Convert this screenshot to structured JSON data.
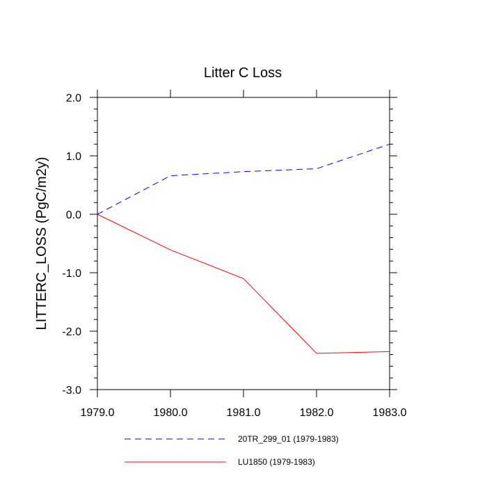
{
  "chart_data": {
    "type": "line",
    "title": "Litter C Loss",
    "xlabel": "",
    "ylabel": "LITTERC_LOSS  (PgC/m2y)",
    "xlim": [
      1979.0,
      1983.0
    ],
    "ylim": [
      -3.0,
      2.0
    ],
    "x": [
      1979,
      1980,
      1981,
      1982,
      1983
    ],
    "xticks": [
      1979,
      1980,
      1981,
      1982,
      1983
    ],
    "xtick_labels": [
      "1979.0",
      "1980.0",
      "1981.0",
      "1982.0",
      "1983.0"
    ],
    "yticks": [
      -3,
      -2,
      -1,
      0,
      1,
      2
    ],
    "ytick_labels": [
      "-3.0",
      "-2.0",
      "-1.0",
      "0.0",
      "1.0",
      "2.0"
    ],
    "grid": false,
    "legend_position": "bottom",
    "series": [
      {
        "name": "20TR_299_01 (1979-1983)",
        "values": [
          0.0,
          0.66,
          0.73,
          0.78,
          1.2
        ],
        "color": "#0000ff",
        "dash": "dashed"
      },
      {
        "name": "LU1850 (1979-1983)",
        "values": [
          0.0,
          -0.61,
          -1.1,
          -2.38,
          -2.35
        ],
        "color": "#ff0000",
        "dash": "solid"
      }
    ]
  }
}
